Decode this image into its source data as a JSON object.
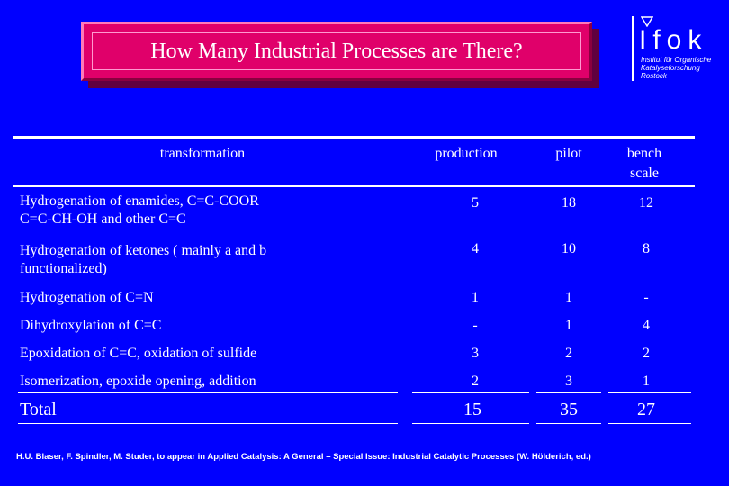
{
  "title": "How Many Industrial Processes are There?",
  "logo": {
    "name": "Ifok",
    "subtitle_lines": [
      "Institut für Organische",
      "Katalyseforschung",
      "Rostock"
    ]
  },
  "table": {
    "headers": {
      "transformation": "transformation",
      "production": "production",
      "pilot": "pilot",
      "bench_line1": "bench",
      "bench_line2": "scale"
    },
    "rows": [
      {
        "label_line1": "Hydrogenation of  enamides, C=C-COOR",
        "label_line2": "C=C-CH-OH  and  other C=C",
        "production": "5",
        "pilot": "18",
        "bench": "12"
      },
      {
        "label_line1": "Hydrogenation of ketones ( mainly a  and  b",
        "label_line2": "functionalized)",
        "production": "4",
        "pilot": "10",
        "bench": "8"
      },
      {
        "label_line1": "Hydrogenation of C=N",
        "production": "1",
        "pilot": "1",
        "bench": "-"
      },
      {
        "label_line1": "Dihydroxylation of C=C",
        "production": "-",
        "pilot": "1",
        "bench": "4"
      },
      {
        "label_line1": "Epoxidation of C=C, oxidation of sulfide",
        "production": "3",
        "pilot": "2",
        "bench": "2"
      },
      {
        "label_line1": "Isomerization,  epoxide opening, addition",
        "production": "2",
        "pilot": "3",
        "bench": "1"
      }
    ],
    "total": {
      "label": "Total",
      "production": "15",
      "pilot": "35",
      "bench": "27"
    }
  },
  "reference": "H.U. Blaser, F. Spindler, M. Studer, to appear in Applied Catalysis: A General – Special Issue: Industrial Catalytic Processes (W. Hölderich, ed.)",
  "colors": {
    "background": "#0000ff",
    "title_box": "#e0006a",
    "text": "#ffffff"
  }
}
